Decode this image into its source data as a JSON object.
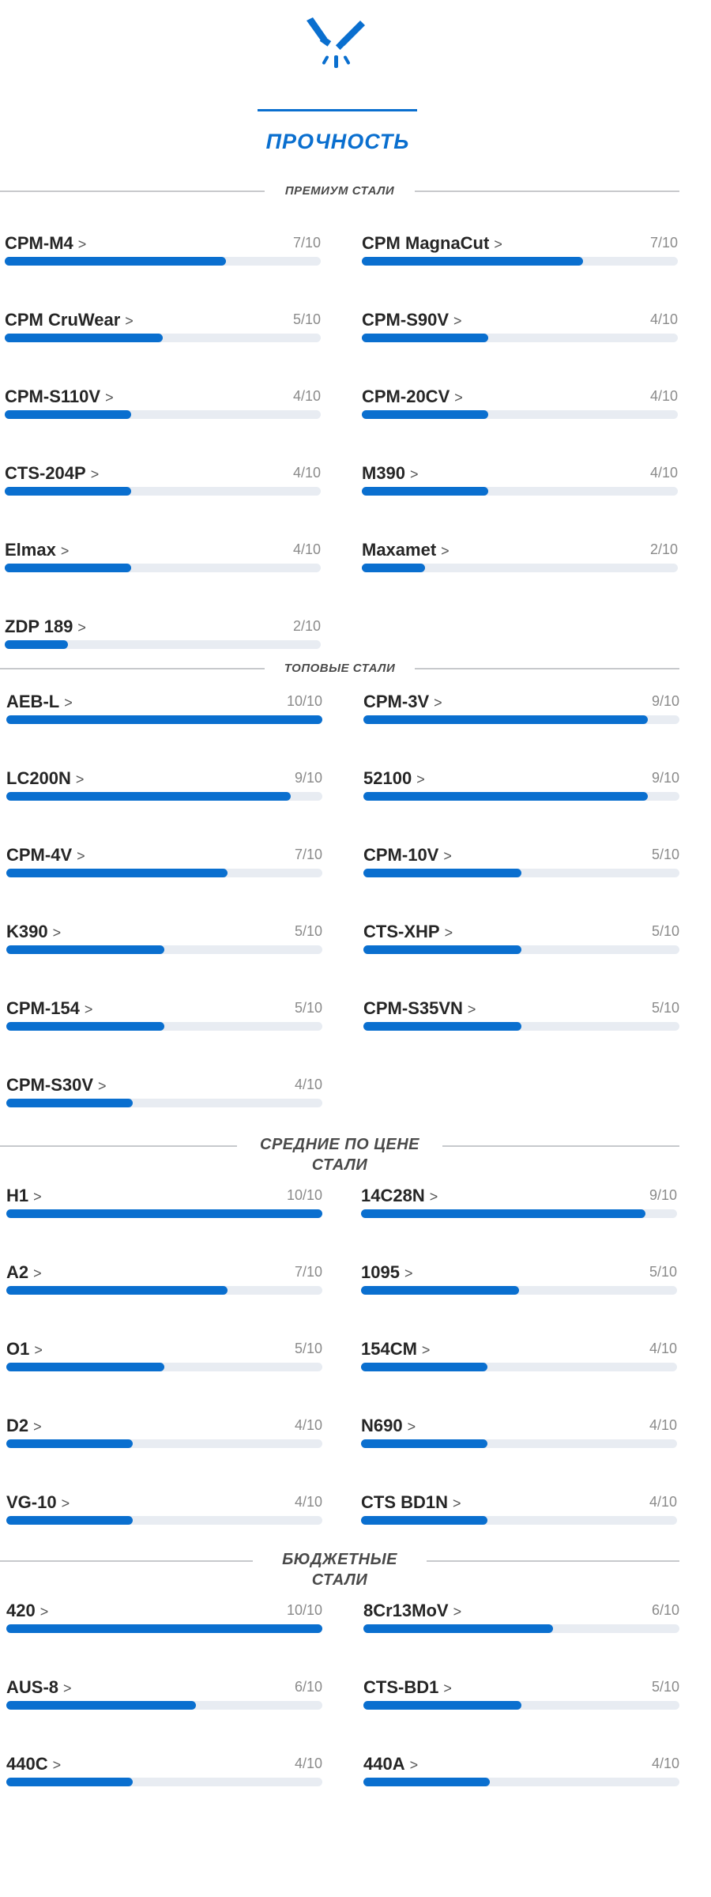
{
  "header": {
    "logo_icon": "blade-and-spark-icon",
    "title": "ПРОЧНОСТЬ",
    "accent_color": "#0a6fcf"
  },
  "sections": [
    {
      "title": "ПРЕМИУМ СТАЛИ",
      "items": [
        {
          "name": "CPM-M4",
          "score": 7,
          "score_label": "7/10"
        },
        {
          "name": "CPM MagnaCut",
          "score": 7,
          "score_label": "7/10"
        },
        {
          "name": "CPM CruWear",
          "score": 5,
          "score_label": "5/10"
        },
        {
          "name": "CPM-S90V",
          "score": 4,
          "score_label": "4/10"
        },
        {
          "name": "CPM-S110V",
          "score": 4,
          "score_label": "4/10"
        },
        {
          "name": "CPM-20CV",
          "score": 4,
          "score_label": "4/10"
        },
        {
          "name": "CTS-204P",
          "score": 4,
          "score_label": "4/10"
        },
        {
          "name": "M390",
          "score": 4,
          "score_label": "4/10"
        },
        {
          "name": "Elmax",
          "score": 4,
          "score_label": "4/10"
        },
        {
          "name": "Maxamet",
          "score": 2,
          "score_label": "2/10"
        },
        {
          "name": "ZDP 189",
          "score": 2,
          "score_label": "2/10"
        }
      ]
    },
    {
      "title": "ТОПОВЫЕ СТАЛИ",
      "items": [
        {
          "name": "AEB-L",
          "score": 10,
          "score_label": "10/10"
        },
        {
          "name": "CPM-3V",
          "score": 9,
          "score_label": "9/10"
        },
        {
          "name": "LC200N",
          "score": 9,
          "score_label": "9/10"
        },
        {
          "name": "52100",
          "score": 9,
          "score_label": "9/10"
        },
        {
          "name": "CPM-4V",
          "score": 7,
          "score_label": "7/10"
        },
        {
          "name": "CPM-10V",
          "score": 5,
          "score_label": "5/10"
        },
        {
          "name": "K390",
          "score": 5,
          "score_label": "5/10"
        },
        {
          "name": "CTS-XHP",
          "score": 5,
          "score_label": "5/10"
        },
        {
          "name": "CPM-154",
          "score": 5,
          "score_label": "5/10"
        },
        {
          "name": "CPM-S35VN",
          "score": 5,
          "score_label": "5/10"
        },
        {
          "name": "CPM-S30V",
          "score": 4,
          "score_label": "4/10"
        }
      ]
    },
    {
      "title": "СРЕДНИЕ ПО ЦЕНЕ СТАЛИ",
      "items": [
        {
          "name": "H1",
          "score": 10,
          "score_label": "10/10"
        },
        {
          "name": "14C28N",
          "score": 9,
          "score_label": "9/10"
        },
        {
          "name": "A2",
          "score": 7,
          "score_label": "7/10"
        },
        {
          "name": "1095",
          "score": 5,
          "score_label": "5/10"
        },
        {
          "name": "O1",
          "score": 5,
          "score_label": "5/10"
        },
        {
          "name": "154CM",
          "score": 4,
          "score_label": "4/10"
        },
        {
          "name": "D2",
          "score": 4,
          "score_label": "4/10"
        },
        {
          "name": "N690",
          "score": 4,
          "score_label": "4/10"
        },
        {
          "name": "VG-10",
          "score": 4,
          "score_label": "4/10"
        },
        {
          "name": "CTS BD1N",
          "score": 4,
          "score_label": "4/10"
        }
      ]
    },
    {
      "title": "БЮДЖЕТНЫЕ СТАЛИ",
      "items": [
        {
          "name": "420",
          "score": 10,
          "score_label": "10/10"
        },
        {
          "name": "8Cr13MoV",
          "score": 6,
          "score_label": "6/10"
        },
        {
          "name": "AUS-8",
          "score": 6,
          "score_label": "6/10"
        },
        {
          "name": "CTS-BD1",
          "score": 5,
          "score_label": "5/10"
        },
        {
          "name": "440C",
          "score": 4,
          "score_label": "4/10"
        },
        {
          "name": "440A",
          "score": 4,
          "score_label": "4/10"
        }
      ]
    }
  ],
  "chevron": ">",
  "max_score": 10
}
